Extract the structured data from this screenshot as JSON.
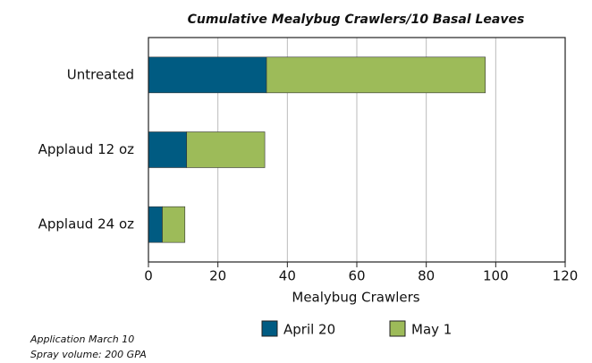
{
  "chart_data": {
    "type": "stacked_barh",
    "title": "Cumulative Mealybug Crawlers/10 Basal Leaves",
    "categories": [
      "Untreated",
      "Applaud 12 oz",
      "Applaud 24 oz"
    ],
    "series": [
      {
        "name": "April 20",
        "color": "#005b82",
        "values": [
          34,
          11,
          4
        ]
      },
      {
        "name": "May 1",
        "color": "#9dbb59",
        "values": [
          63,
          22.5,
          6.5
        ]
      }
    ],
    "xlabel": "Mealybug Crawlers",
    "xlim": [
      0,
      120
    ],
    "xticks": [
      0,
      20,
      40,
      60,
      80,
      100,
      120
    ],
    "grid": true,
    "notes": [
      "Application March 10",
      "Spray volume: 200 GPA"
    ]
  }
}
